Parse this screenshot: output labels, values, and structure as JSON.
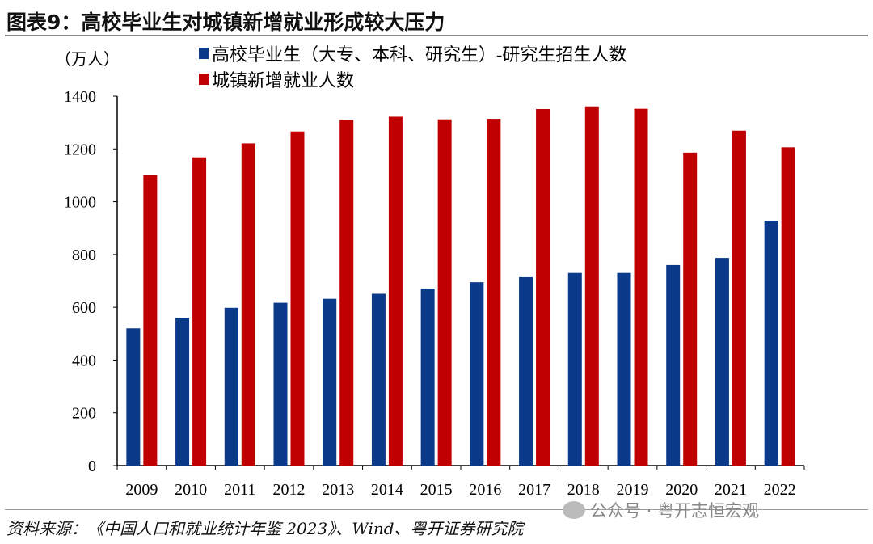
{
  "title": "图表9：高校毕业生对城镇新增就业形成较大压力",
  "source": "资料来源：《中国人口和就业统计年鉴 2023》、Wind、粤开证券研究院",
  "watermark": "公众号 · 粤开志恒宏观",
  "chart_data": {
    "type": "bar",
    "unit_label": "（万人）",
    "categories": [
      "2009",
      "2010",
      "2011",
      "2012",
      "2013",
      "2014",
      "2015",
      "2016",
      "2017",
      "2018",
      "2019",
      "2020",
      "2021",
      "2022"
    ],
    "series": [
      {
        "name": "高校毕业生（大专、本科、研究生）-研究生招生人数",
        "color": "#0b3a8a",
        "values": [
          520,
          560,
          598,
          617,
          632,
          651,
          671,
          695,
          714,
          730,
          730,
          760,
          787,
          928
        ]
      },
      {
        "name": "城镇新增就业人数",
        "color": "#c00000",
        "values": [
          1102,
          1168,
          1221,
          1266,
          1310,
          1322,
          1312,
          1314,
          1351,
          1361,
          1352,
          1186,
          1269,
          1206
        ]
      }
    ],
    "ylim": [
      0,
      1400
    ],
    "yticks": [
      0,
      200,
      400,
      600,
      800,
      1000,
      1200,
      1400
    ],
    "grid": false,
    "legend": "top"
  }
}
